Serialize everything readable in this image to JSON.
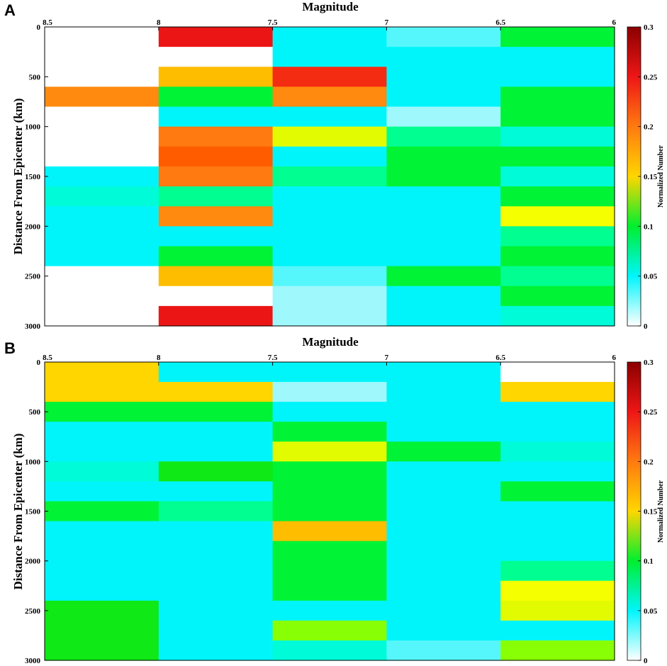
{
  "colors": {
    "empty": "#ffffff",
    "c1": "#9ff8fc",
    "c2": "#55f7fc",
    "c3": "#00f5fb",
    "c4": "#00fbd9",
    "c5": "#00ff90",
    "c6": "#00f335",
    "c7": "#0fe915",
    "c8": "#88ff04",
    "c9": "#e3fb00",
    "c10": "#f5ff00",
    "c11": "#ffd600",
    "c12": "#ffbd00",
    "c13": "#ff8a0f",
    "c14": "#ff7a10",
    "c15": "#ff5c00",
    "c16": "#f32c12",
    "c17": "#ec1515"
  },
  "colorbar": {
    "title": "Normalized Number",
    "ticks": [
      "0",
      "0.05",
      "0.1",
      "0.15",
      "0.2",
      "0.25",
      "0.3"
    ],
    "stops": [
      "#ffffff",
      "#00f5fb",
      "#00ef2f",
      "#ffd600",
      "#ff7a10",
      "#ee1616",
      "#8b0000"
    ]
  },
  "chart_data": [
    {
      "panel": "A",
      "type": "heatmap",
      "title": "Magnitude",
      "xlabel": "Magnitude",
      "ylabel": "Distance From Epicenter (km)",
      "x_ticks": [
        "8.5",
        "8",
        "7.5",
        "7",
        "6.5",
        "6"
      ],
      "y_ticks": [
        "0",
        "500",
        "1000",
        "1500",
        "2000",
        "2500",
        "3000"
      ],
      "x_range": [
        8.5,
        6
      ],
      "y_range": [
        0,
        3000
      ],
      "bin_km": 200,
      "columns": [
        {
          "magnitude_bin": "8.5-8",
          "cells": [
            "empty",
            "empty",
            "empty",
            "c13",
            "empty",
            "empty",
            "empty",
            "c3",
            "c4",
            "c3",
            "c3",
            "c3",
            "empty",
            "empty",
            "empty"
          ]
        },
        {
          "magnitude_bin": "8-7.5",
          "cells": [
            "c17",
            "empty",
            "c12",
            "c6",
            "c3",
            "c14",
            "c15",
            "c14",
            "c5",
            "c13",
            "c3",
            "c6",
            "c12",
            "empty",
            "c17"
          ]
        },
        {
          "magnitude_bin": "7.5-7",
          "cells": [
            "c3",
            "c3",
            "c16",
            "c13",
            "c3",
            "c9",
            "c3",
            "c5",
            "c3",
            "c3",
            "c3",
            "c3",
            "c2",
            "c1",
            "c1"
          ]
        },
        {
          "magnitude_bin": "7-6.5",
          "cells": [
            "c2",
            "c3",
            "c3",
            "c3",
            "c1",
            "c5",
            "c6",
            "c6",
            "c3",
            "c3",
            "c3",
            "c3",
            "c6",
            "c3",
            "c3"
          ]
        },
        {
          "magnitude_bin": "6.5-6",
          "cells": [
            "c6",
            "c3",
            "c3",
            "c6",
            "c6",
            "c4",
            "c6",
            "c4",
            "c6",
            "c10",
            "c5",
            "c6",
            "c5",
            "c6",
            "c4"
          ]
        }
      ]
    },
    {
      "panel": "B",
      "type": "heatmap",
      "title": "Magnitude",
      "xlabel": "Magnitude",
      "ylabel": "Distance From Epicenter (km)",
      "x_ticks": [
        "8.5",
        "8",
        "7.5",
        "7",
        "6.5",
        "6"
      ],
      "y_ticks": [
        "0",
        "500",
        "1000",
        "1500",
        "2000",
        "2500",
        "3000"
      ],
      "x_range": [
        8.5,
        6
      ],
      "y_range": [
        0,
        3000
      ],
      "bin_km": 200,
      "columns": [
        {
          "magnitude_bin": "8.5-8",
          "cells": [
            "c11",
            "c11",
            "c6",
            "c3",
            "c3",
            "c4",
            "c3",
            "c6",
            "c3",
            "c3",
            "c3",
            "c3",
            "c7",
            "c7",
            "c7"
          ]
        },
        {
          "magnitude_bin": "8-7.5",
          "cells": [
            "c3",
            "c11",
            "c6",
            "c3",
            "c3",
            "c7",
            "c3",
            "c5",
            "c3",
            "c3",
            "c3",
            "c3",
            "c3",
            "c3",
            "c3"
          ]
        },
        {
          "magnitude_bin": "7.5-7",
          "cells": [
            "c3",
            "c1",
            "c3",
            "c6",
            "c9",
            "c6",
            "c6",
            "c6",
            "c12",
            "c6",
            "c6",
            "c6",
            "c3",
            "c8",
            "c4"
          ]
        },
        {
          "magnitude_bin": "7-6.5",
          "cells": [
            "c3",
            "c3",
            "c3",
            "c3",
            "c6",
            "c3",
            "c3",
            "c3",
            "c3",
            "c3",
            "c3",
            "c3",
            "c3",
            "c3",
            "c2"
          ]
        },
        {
          "magnitude_bin": "6.5-6",
          "cells": [
            "empty",
            "c11",
            "c3",
            "c3",
            "c4",
            "c3",
            "c6",
            "c3",
            "c3",
            "c3",
            "c5",
            "c10",
            "c9",
            "c3",
            "c8"
          ]
        }
      ]
    }
  ]
}
